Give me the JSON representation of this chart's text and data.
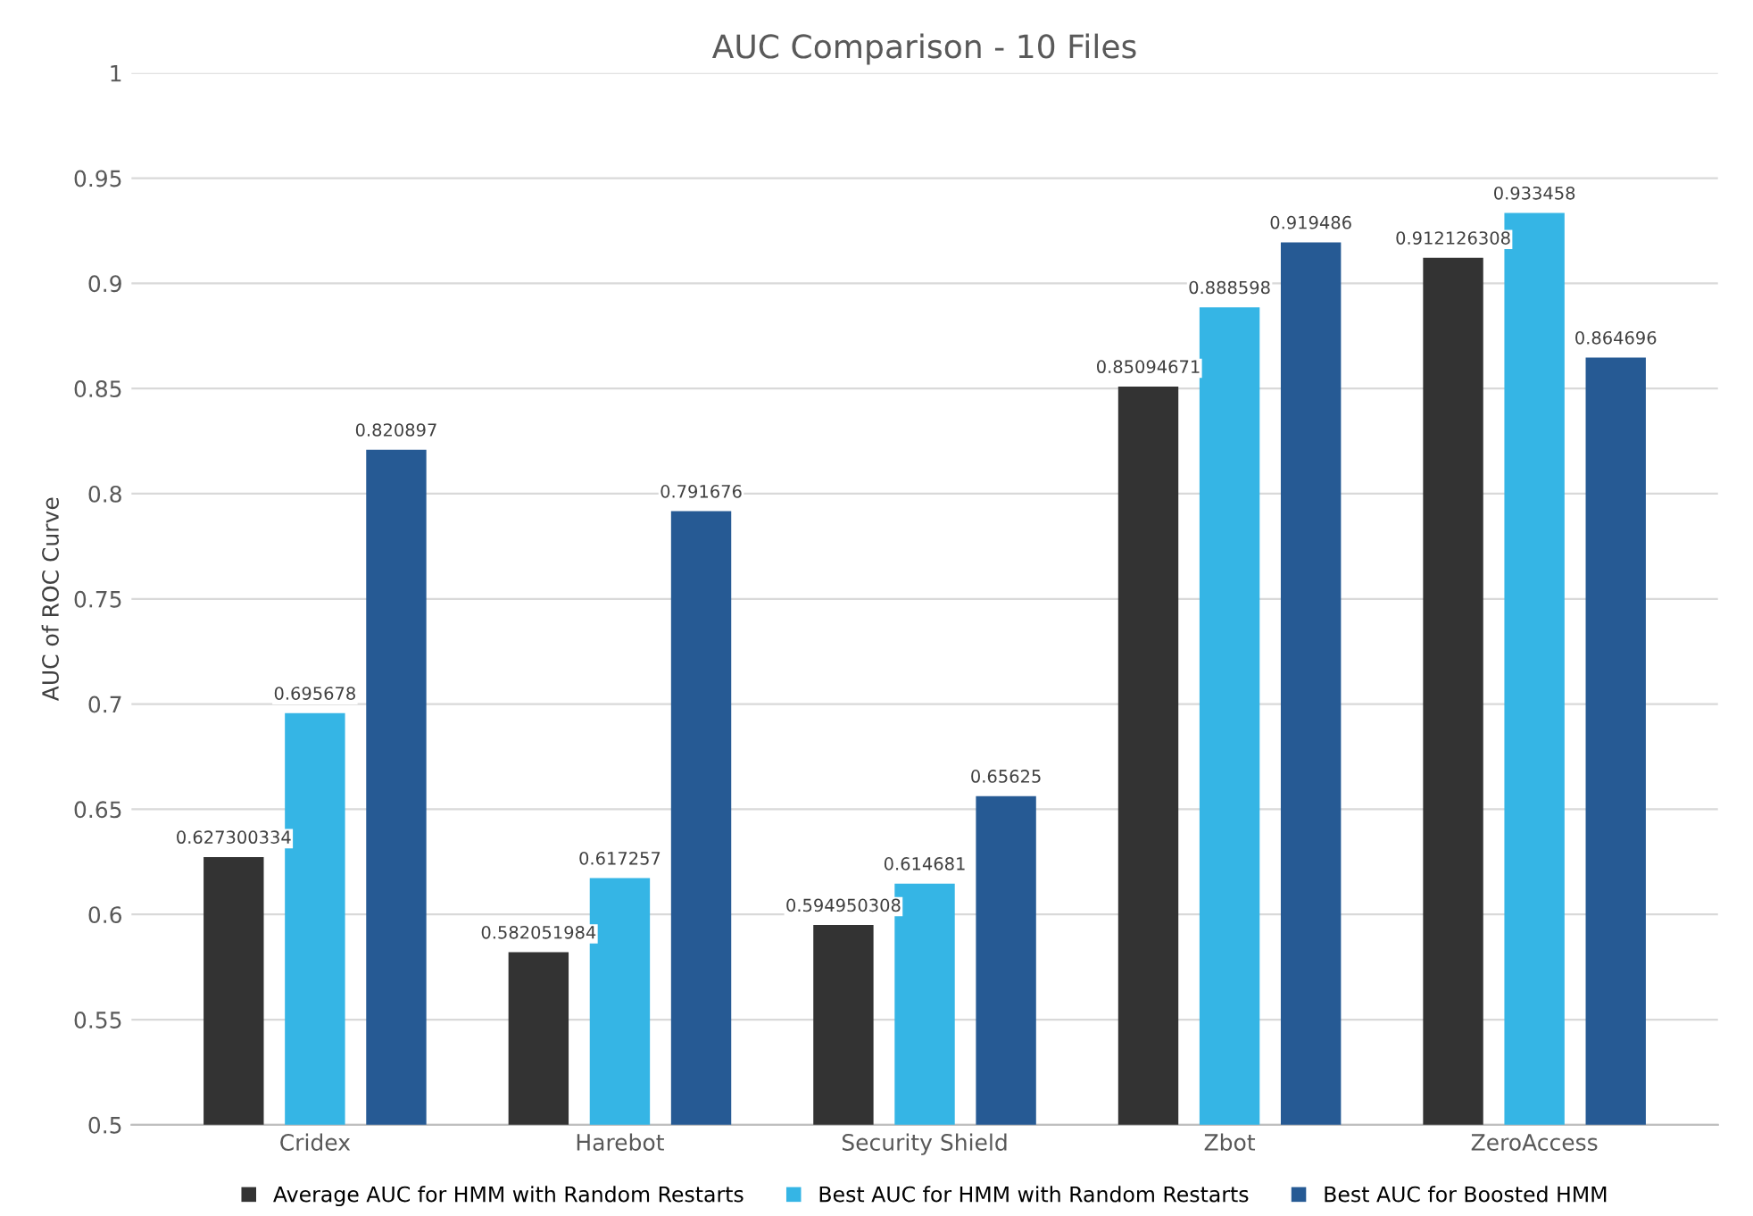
{
  "chart_data": {
    "type": "bar",
    "title": "AUC Comparison - 10 Files",
    "ylabel": "AUC of ROC Curve",
    "categories": [
      "Cridex",
      "Harebot",
      "Security Shield",
      "Zbot",
      "ZeroAccess"
    ],
    "series": [
      {
        "name": "Average AUC for HMM with Random Restarts",
        "color": "#333333",
        "values": [
          0.627300334,
          0.582051984,
          0.594950308,
          0.85094671,
          0.912126308
        ]
      },
      {
        "name": "Best AUC for HMM with Random Restarts",
        "color": "#35b5e5",
        "values": [
          0.695678,
          0.617257,
          0.614681,
          0.888598,
          0.933458
        ]
      },
      {
        "name": "Best AUC for Boosted HMM",
        "color": "#265a94",
        "values": [
          0.820897,
          0.791676,
          0.65625,
          0.919486,
          0.864696
        ]
      }
    ],
    "ylim": [
      0.5,
      1
    ],
    "yticks": [
      0.5,
      0.55,
      0.6,
      0.65,
      0.7,
      0.75,
      0.8,
      0.85,
      0.9,
      0.95,
      1
    ],
    "grid": "y",
    "legend": "bottom",
    "data_labels": true
  }
}
